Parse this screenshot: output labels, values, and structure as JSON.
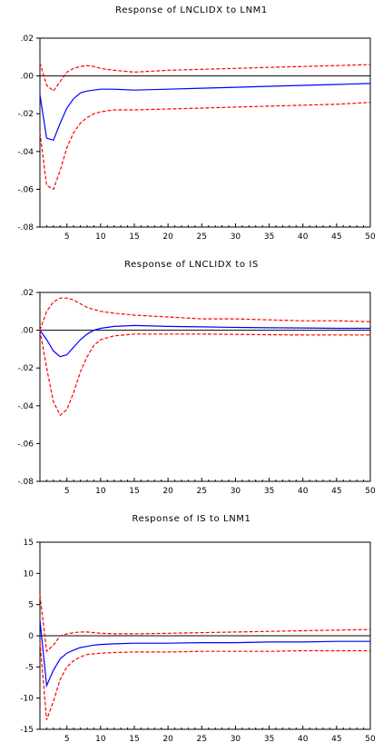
{
  "chart_data": [
    {
      "type": "line",
      "title": "Response of LNCLIDX to LNM1",
      "xlim": [
        1,
        50
      ],
      "ylim": [
        -0.08,
        0.02
      ],
      "x_ticks": [
        5,
        10,
        15,
        20,
        25,
        30,
        35,
        40,
        45,
        50
      ],
      "y_ticks": [
        0.02,
        0.0,
        -0.02,
        -0.04,
        -0.06,
        -0.08
      ],
      "y_tick_labels": [
        ".02",
        ".00",
        "-.02",
        "-.04",
        "-.06",
        "-.08"
      ],
      "zero_line": true,
      "series": [
        {
          "color": "#0000ff",
          "style": "solid",
          "x": [
            1,
            2,
            3,
            4,
            5,
            6,
            7,
            8,
            9,
            10,
            12,
            15,
            20,
            25,
            30,
            35,
            40,
            45,
            50
          ],
          "y": [
            -0.01,
            -0.033,
            -0.034,
            -0.025,
            -0.017,
            -0.012,
            -0.009,
            -0.008,
            -0.0075,
            -0.007,
            -0.007,
            -0.0075,
            -0.007,
            -0.0065,
            -0.006,
            -0.0055,
            -0.005,
            -0.0045,
            -0.004
          ]
        },
        {
          "color": "#ff0000",
          "style": "dashed",
          "x": [
            1,
            2,
            3,
            4,
            5,
            6,
            7,
            8,
            9,
            10,
            12,
            15,
            20,
            25,
            30,
            35,
            40,
            45,
            50
          ],
          "y": [
            0.007,
            -0.005,
            -0.008,
            -0.003,
            0.002,
            0.004,
            0.005,
            0.0055,
            0.005,
            0.004,
            0.003,
            0.002,
            0.003,
            0.0035,
            0.004,
            0.0045,
            0.005,
            0.0055,
            0.006
          ]
        },
        {
          "color": "#ff0000",
          "style": "dashed",
          "x": [
            1,
            2,
            3,
            4,
            5,
            6,
            7,
            8,
            9,
            10,
            12,
            15,
            20,
            25,
            30,
            35,
            40,
            45,
            50
          ],
          "y": [
            -0.03,
            -0.058,
            -0.06,
            -0.05,
            -0.038,
            -0.03,
            -0.025,
            -0.022,
            -0.02,
            -0.019,
            -0.018,
            -0.018,
            -0.0175,
            -0.017,
            -0.0165,
            -0.016,
            -0.0155,
            -0.015,
            -0.014
          ]
        }
      ]
    },
    {
      "type": "line",
      "title": "Response of LNCLIDX to IS",
      "xlim": [
        1,
        50
      ],
      "ylim": [
        -0.08,
        0.02
      ],
      "x_ticks": [
        5,
        10,
        15,
        20,
        25,
        30,
        35,
        40,
        45,
        50
      ],
      "y_ticks": [
        0.02,
        0.0,
        -0.02,
        -0.04,
        -0.06,
        -0.08
      ],
      "y_tick_labels": [
        ".02",
        ".00",
        "-.02",
        "-.04",
        "-.06",
        "-.08"
      ],
      "zero_line": true,
      "series": [
        {
          "color": "#0000ff",
          "style": "solid",
          "x": [
            1,
            2,
            3,
            4,
            5,
            6,
            7,
            8,
            9,
            10,
            12,
            15,
            20,
            25,
            30,
            35,
            40,
            45,
            50
          ],
          "y": [
            0.0,
            -0.005,
            -0.011,
            -0.014,
            -0.013,
            -0.009,
            -0.005,
            -0.002,
            0.0,
            0.001,
            0.002,
            0.0025,
            0.002,
            0.0018,
            0.0015,
            0.0013,
            0.0012,
            0.001,
            0.001
          ]
        },
        {
          "color": "#ff0000",
          "style": "dashed",
          "x": [
            1,
            2,
            3,
            4,
            5,
            6,
            7,
            8,
            9,
            10,
            12,
            15,
            20,
            25,
            30,
            35,
            40,
            45,
            50
          ],
          "y": [
            0.0,
            0.01,
            0.015,
            0.017,
            0.017,
            0.016,
            0.014,
            0.012,
            0.011,
            0.01,
            0.009,
            0.008,
            0.007,
            0.006,
            0.006,
            0.0055,
            0.005,
            0.005,
            0.0045
          ]
        },
        {
          "color": "#ff0000",
          "style": "dashed",
          "x": [
            1,
            2,
            3,
            4,
            5,
            6,
            7,
            8,
            9,
            10,
            12,
            15,
            20,
            25,
            30,
            35,
            40,
            45,
            50
          ],
          "y": [
            0.0,
            -0.02,
            -0.038,
            -0.045,
            -0.042,
            -0.033,
            -0.022,
            -0.014,
            -0.008,
            -0.005,
            -0.003,
            -0.002,
            -0.002,
            -0.002,
            -0.0022,
            -0.0024,
            -0.0025,
            -0.0025,
            -0.0025
          ]
        }
      ]
    },
    {
      "type": "line",
      "title": "Response of IS to LNM1",
      "xlim": [
        1,
        50
      ],
      "ylim": [
        -15,
        15
      ],
      "x_ticks": [
        5,
        10,
        15,
        20,
        25,
        30,
        35,
        40,
        45,
        50
      ],
      "y_ticks": [
        15,
        10,
        5,
        0,
        -5,
        -10,
        -15
      ],
      "y_tick_labels": [
        "15",
        "10",
        "5",
        "0",
        "-5",
        "-10",
        "-15"
      ],
      "zero_line": true,
      "series": [
        {
          "color": "#0000ff",
          "style": "solid",
          "x": [
            1,
            2,
            3,
            4,
            5,
            6,
            7,
            8,
            9,
            10,
            12,
            15,
            20,
            25,
            30,
            35,
            40,
            45,
            50
          ],
          "y": [
            2.5,
            -8.0,
            -5.5,
            -3.7,
            -2.8,
            -2.3,
            -1.9,
            -1.7,
            -1.5,
            -1.4,
            -1.3,
            -1.2,
            -1.2,
            -1.1,
            -1.1,
            -1.0,
            -1.0,
            -0.9,
            -0.9
          ]
        },
        {
          "color": "#ff0000",
          "style": "dashed",
          "x": [
            1,
            2,
            3,
            4,
            5,
            6,
            7,
            8,
            9,
            10,
            12,
            15,
            20,
            25,
            30,
            35,
            40,
            45,
            50
          ],
          "y": [
            6.5,
            -2.5,
            -1.5,
            0.0,
            0.3,
            0.5,
            0.6,
            0.6,
            0.5,
            0.4,
            0.3,
            0.3,
            0.4,
            0.5,
            0.6,
            0.7,
            0.8,
            0.9,
            1.0
          ]
        },
        {
          "color": "#ff0000",
          "style": "dashed",
          "x": [
            1,
            2,
            3,
            4,
            5,
            6,
            7,
            8,
            9,
            10,
            12,
            15,
            20,
            25,
            30,
            35,
            40,
            45,
            50
          ],
          "y": [
            -1.0,
            -13.5,
            -10.5,
            -7.0,
            -5.0,
            -4.0,
            -3.4,
            -3.0,
            -2.9,
            -2.8,
            -2.7,
            -2.6,
            -2.6,
            -2.5,
            -2.5,
            -2.5,
            -2.4,
            -2.4,
            -2.4
          ]
        }
      ]
    }
  ]
}
